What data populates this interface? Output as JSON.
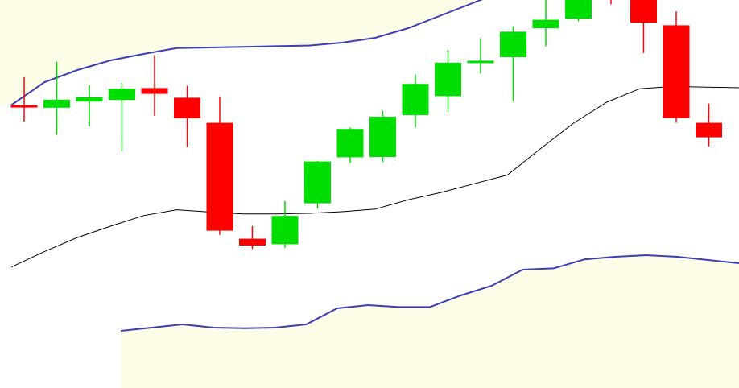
{
  "chart_data": {
    "type": "candlestick",
    "title": "",
    "xlabel": "",
    "ylabel": "",
    "grid": false,
    "legend": "none",
    "overlays": [
      "upper-band",
      "middle-band",
      "lower-band"
    ],
    "colors": {
      "bull": "#00dd00",
      "bear": "#ff0000",
      "bands": "#3b3fb5",
      "middle": "#000000",
      "shade": "#fdfce6",
      "background": "#ffffff"
    },
    "candles": [
      {
        "open": 91.1,
        "high": 99.8,
        "low": 86.0,
        "close": 90.8
      },
      {
        "open": 90.3,
        "high": 104.6,
        "low": 81.9,
        "close": 92.8
      },
      {
        "open": 92.2,
        "high": 97.3,
        "low": 84.5,
        "close": 93.6
      },
      {
        "open": 92.7,
        "high": 98.0,
        "low": 76.7,
        "close": 96.2
      },
      {
        "open": 96.4,
        "high": 106.6,
        "low": 87.8,
        "close": 94.6
      },
      {
        "open": 93.4,
        "high": 97.1,
        "low": 78.1,
        "close": 87.0
      },
      {
        "open": 85.6,
        "high": 93.8,
        "low": 50.8,
        "close": 52.1
      },
      {
        "open": 49.6,
        "high": 53.5,
        "low": 46.5,
        "close": 47.5
      },
      {
        "open": 47.9,
        "high": 61.3,
        "low": 46.8,
        "close": 56.7
      },
      {
        "open": 60.6,
        "high": 73.8,
        "low": 59.0,
        "close": 73.6
      },
      {
        "open": 74.9,
        "high": 84.2,
        "low": 73.2,
        "close": 83.7
      },
      {
        "open": 75.0,
        "high": 89.3,
        "low": 73.4,
        "close": 87.5
      },
      {
        "open": 88.0,
        "high": 100.6,
        "low": 84.1,
        "close": 97.7
      },
      {
        "open": 93.9,
        "high": 108.2,
        "low": 88.9,
        "close": 104.3
      },
      {
        "open": 104.4,
        "high": 111.9,
        "low": 100.9,
        "close": 104.9
      },
      {
        "open": 106.0,
        "high": 115.6,
        "low": 92.3,
        "close": 113.9
      },
      {
        "open": 115.0,
        "high": 125.1,
        "low": 109.4,
        "close": 117.6
      },
      {
        "open": 117.9,
        "high": 130.9,
        "low": 117.1,
        "close": 130.5
      },
      {
        "open": 128.0,
        "high": 129.5,
        "low": 122.4,
        "close": 126.4
      },
      {
        "open": 123.9,
        "high": 130.0,
        "low": 107.3,
        "close": 116.7
      },
      {
        "open": 115.9,
        "high": 120.2,
        "low": 85.6,
        "close": 87.1
      },
      {
        "open": 85.6,
        "high": 91.6,
        "low": 78.3,
        "close": 81.1
      }
    ],
    "upper_band": [
      91.1,
      98.2,
      102.0,
      105.0,
      107.0,
      108.8,
      109.0,
      109.2,
      109.4,
      109.6,
      110.5,
      112.0,
      115.0,
      119.0,
      123.0,
      127.0,
      128.0,
      130.0,
      134.0,
      138.0,
      140.0,
      142.0,
      143.0
    ],
    "middle_band": [
      40.8,
      45.6,
      50.0,
      53.5,
      56.8,
      58.6,
      57.9,
      57.3,
      57.3,
      57.5,
      58.0,
      58.8,
      61.7,
      64.0,
      66.7,
      69.4,
      77.6,
      85.5,
      92.0,
      96.2,
      96.9,
      96.7,
      96.5
    ],
    "lower_band": [
      21.0,
      22.0,
      23.0,
      22.0,
      21.8,
      22.0,
      23.0,
      28.0,
      29.0,
      28.4,
      28.4,
      32.0,
      35.0,
      40.0,
      40.4,
      43.2,
      44.0,
      44.5,
      44.0,
      43.0,
      42.0
    ]
  }
}
